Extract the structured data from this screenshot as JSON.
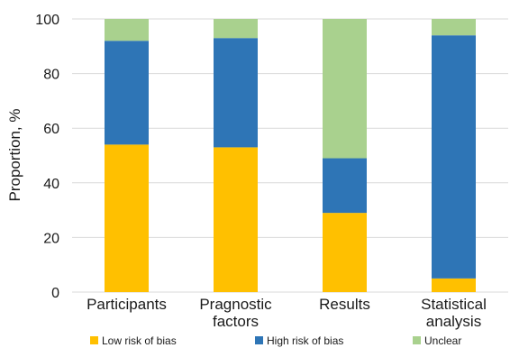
{
  "chart_data": {
    "type": "bar",
    "stacked": true,
    "percent": true,
    "categories": [
      [
        "Participants"
      ],
      [
        "Pragnostic",
        "factors"
      ],
      [
        "Results"
      ],
      [
        "Statistical",
        "analysis"
      ]
    ],
    "series": [
      {
        "name": "Low risk of bias",
        "color": "#FFC000",
        "values": [
          54,
          53,
          29,
          5
        ]
      },
      {
        "name": "High risk of bias",
        "color": "#2E75B6",
        "values": [
          38,
          40,
          20,
          89
        ]
      },
      {
        "name": "Unclear",
        "color": "#A9D18E",
        "values": [
          8,
          7,
          51,
          6
        ]
      }
    ],
    "ylabel": "Proportion, %",
    "ylim": [
      0,
      100
    ],
    "yticks": [
      "0",
      "20",
      "40",
      "60",
      "80",
      "100"
    ],
    "grid": true,
    "legend_position": "bottom"
  }
}
